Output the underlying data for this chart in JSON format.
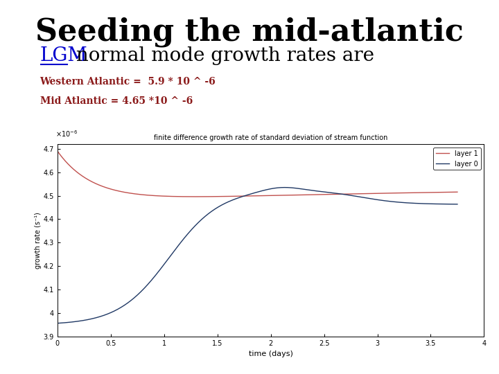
{
  "title": "Seeding the mid-atlantic",
  "lgm_text": "LGM",
  "subtitle_rest": " normal mode growth rates are",
  "line1_label": "Western Atlantic =  5.9 * 10 ^ -6",
  "line2_label": "Mid Atlantic = 4.65 *10 ^ -6",
  "plot_title": "finite difference growth rate of standard deviation of stream function",
  "xlabel": "time (days)",
  "xlim": [
    0,
    4
  ],
  "ylim": [
    3.9e-06,
    4.72e-06
  ],
  "yticks": [
    3.9e-06,
    4e-06,
    4.1e-06,
    4.2e-06,
    4.3e-06,
    4.4e-06,
    4.5e-06,
    4.6e-06,
    4.7e-06
  ],
  "ytick_labels": [
    "3.9",
    "4",
    "4.1",
    "4.2",
    "4.3",
    "4.4",
    "4.5",
    "4.6",
    "4.7"
  ],
  "xticks": [
    0,
    0.5,
    1,
    1.5,
    2,
    2.5,
    3,
    3.5,
    4
  ],
  "xtick_labels": [
    "0",
    "0.5",
    "1",
    "1.5",
    "2",
    "2.5",
    "3",
    "3.5",
    "4"
  ],
  "layer1_color": "#c0504d",
  "layer0_color": "#1f3864",
  "background_color": "#ffffff",
  "title_fontsize": 32,
  "subtitle_fontsize": 20,
  "text_color_red": "#8b1a1a",
  "text_color_blue": "#0000cd",
  "legend_labels": [
    "layer 1",
    "layer 0"
  ]
}
